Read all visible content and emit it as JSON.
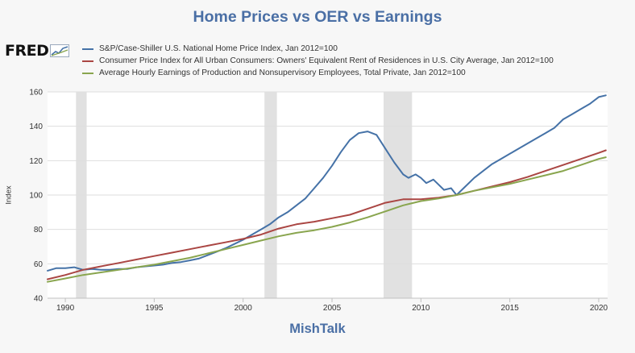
{
  "chart_data": {
    "type": "line",
    "title": "Home Prices vs OER vs Earnings",
    "subtitle": "MishTalk",
    "source_logo": "FRED",
    "xlabel": "",
    "ylabel": "Index",
    "xlim": [
      1989,
      2020.5
    ],
    "ylim": [
      40,
      160
    ],
    "x_ticks": [
      1990,
      1995,
      2000,
      2005,
      2010,
      2015,
      2020
    ],
    "y_ticks": [
      40,
      60,
      80,
      100,
      120,
      140,
      160
    ],
    "grid": "horizontal",
    "recessions": [
      [
        1990.6,
        1991.2
      ],
      [
        2001.2,
        2001.9
      ],
      [
        2007.9,
        2009.5
      ]
    ],
    "series": [
      {
        "name": "S&P/Case-Shiller U.S. National Home Price Index, Jan 2012=100",
        "color": "#4572a7",
        "x": [
          1989.0,
          1989.5,
          1990.0,
          1990.5,
          1991.0,
          1991.5,
          1992.0,
          1992.5,
          1993.0,
          1993.5,
          1994.0,
          1994.5,
          1995.0,
          1995.5,
          1996.0,
          1996.5,
          1997.0,
          1997.5,
          1998.0,
          1998.5,
          1999.0,
          1999.5,
          2000.0,
          2000.5,
          2001.0,
          2001.5,
          2002.0,
          2002.5,
          2003.0,
          2003.5,
          2004.0,
          2004.5,
          2005.0,
          2005.5,
          2006.0,
          2006.5,
          2007.0,
          2007.5,
          2008.0,
          2008.5,
          2009.0,
          2009.3,
          2009.7,
          2010.0,
          2010.3,
          2010.7,
          2011.0,
          2011.3,
          2011.7,
          2012.0,
          2012.3,
          2012.7,
          2013.0,
          2013.5,
          2014.0,
          2014.5,
          2015.0,
          2015.5,
          2016.0,
          2016.5,
          2017.0,
          2017.5,
          2018.0,
          2018.5,
          2019.0,
          2019.5,
          2020.0,
          2020.4
        ],
        "values": [
          56,
          57.5,
          57.5,
          58,
          56.5,
          57,
          56.5,
          56.5,
          57,
          57,
          58,
          58.5,
          59,
          59.5,
          60.5,
          61,
          62,
          63,
          65,
          67,
          69,
          71.5,
          74,
          77,
          80,
          83,
          87,
          90,
          94,
          98,
          104,
          110,
          117,
          125,
          132,
          136,
          137,
          135,
          127,
          119,
          112,
          110,
          112,
          110,
          107,
          109,
          106,
          103,
          104,
          100,
          103,
          107,
          110,
          114,
          118,
          121,
          124,
          127,
          130,
          133,
          136,
          139,
          144,
          147,
          150,
          153,
          157,
          158
        ]
      },
      {
        "name": "Consumer Price Index for All Urban Consumers: Owners' Equivalent Rent of Residences in U.S. City Average, Jan 2012=100",
        "color": "#aa4643",
        "x": [
          1989,
          1990,
          1991,
          1992,
          1993,
          1994,
          1995,
          1996,
          1997,
          1998,
          1999,
          2000,
          2001,
          2002,
          2003,
          2004,
          2005,
          2006,
          2007,
          2008,
          2009,
          2010,
          2011,
          2012,
          2013,
          2014,
          2015,
          2016,
          2017,
          2018,
          2019,
          2020,
          2020.4
        ],
        "values": [
          51,
          53.5,
          56.5,
          58.5,
          60.5,
          62.5,
          64.5,
          66.5,
          68.5,
          70.5,
          72.5,
          74.5,
          77,
          80.5,
          83,
          84.5,
          86.5,
          88.5,
          92,
          95.5,
          97.5,
          97.5,
          98.5,
          100,
          102.5,
          105,
          107.5,
          110.5,
          114,
          117.5,
          121,
          124.5,
          126
        ]
      },
      {
        "name": "Average Hourly Earnings of Production and Nonsupervisory Employees, Total Private, Jan 2012=100",
        "color": "#89a54e",
        "x": [
          1989,
          1990,
          1991,
          1992,
          1993,
          1994,
          1995,
          1996,
          1997,
          1998,
          1999,
          2000,
          2001,
          2002,
          2003,
          2004,
          2005,
          2006,
          2007,
          2008,
          2009,
          2010,
          2011,
          2012,
          2013,
          2014,
          2015,
          2016,
          2017,
          2018,
          2019,
          2020,
          2020.4
        ],
        "values": [
          49.5,
          51.5,
          53.5,
          55,
          56.5,
          58,
          59.5,
          61.5,
          63.5,
          66,
          68.5,
          71,
          73.5,
          76,
          78,
          79.5,
          81.5,
          84,
          87,
          90.5,
          94,
          96.5,
          98,
          100,
          102.5,
          104.5,
          106.5,
          109,
          111.5,
          114,
          117.5,
          121,
          122
        ]
      }
    ]
  }
}
